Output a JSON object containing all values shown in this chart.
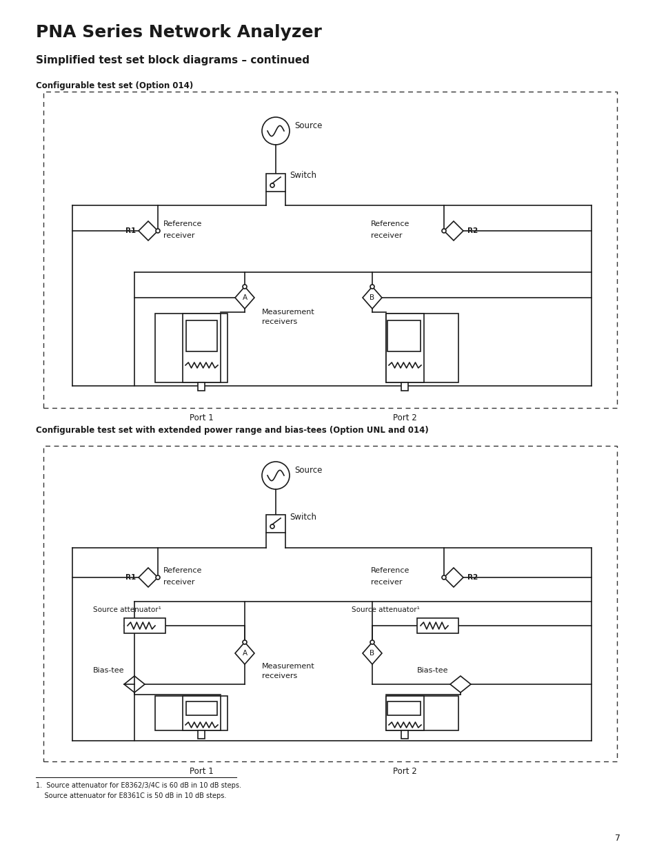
{
  "title": "PNA Series Network Analyzer",
  "subtitle": "Simplified test set block diagrams – continued",
  "diagram1_label": "Configurable test set (Option 014)",
  "diagram2_label": "Configurable test set with extended power range and bias-tees (Option UNL and 014)",
  "footnote_line1": "1.  Source attenuator for E8362/3/4C is 60 dB in 10 dB steps.",
  "footnote_line2": "    Source attenuator for E8361C is 50 dB in 10 dB steps.",
  "page_number": "7",
  "bg_color": "#ffffff",
  "line_color": "#1a1a1a"
}
